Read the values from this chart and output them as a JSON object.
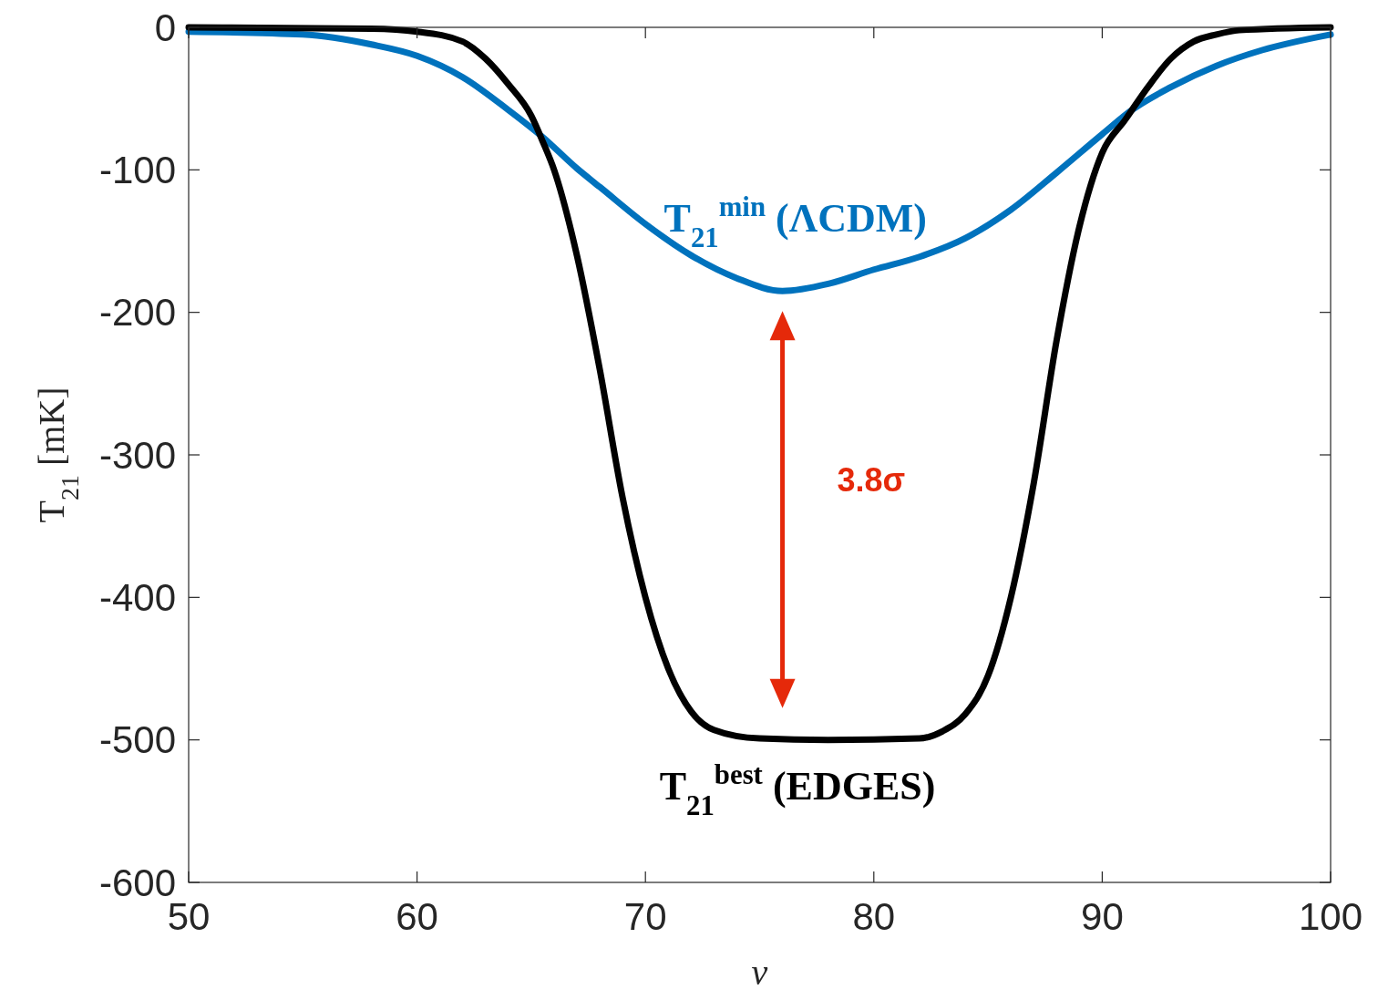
{
  "chart_data": {
    "type": "line",
    "xlabel": "ν",
    "ylabel": "T$_{21}$ [mK]",
    "xlim": [
      50,
      100
    ],
    "ylim": [
      -600,
      0
    ],
    "xticks": [
      50,
      60,
      70,
      80,
      90,
      100
    ],
    "yticks": [
      -600,
      -500,
      -400,
      -300,
      -200,
      -100,
      0
    ],
    "line_style": "solid",
    "marker": "none",
    "grid": false,
    "series": [
      {
        "name": "T$_{21}$$^{min}$ (ΛCDM)",
        "color": "#0072bd",
        "x": [
          50,
          55,
          58,
          60,
          62,
          64,
          65.5,
          67,
          68,
          70,
          72,
          74,
          76,
          78,
          80,
          82,
          84,
          86,
          88,
          90,
          91.3,
          93,
          95,
          97,
          100
        ],
        "values": [
          -3,
          -5,
          -12,
          -20,
          -35,
          -58,
          -77,
          -99,
          -112,
          -138,
          -160,
          -176,
          -185,
          -180,
          -170,
          -161,
          -148,
          -128,
          -102,
          -75,
          -58,
          -42,
          -27,
          -16,
          -5
        ]
      },
      {
        "name": "T$_{21}$$^{best}$ (EDGES)",
        "color": "#000000",
        "x": [
          50,
          58,
          60,
          62,
          63,
          64,
          65,
          65.5,
          66,
          67,
          68,
          69,
          70,
          71,
          72,
          73,
          75,
          78,
          82,
          83,
          84,
          85,
          86,
          87,
          88,
          89,
          90,
          91,
          91.3,
          92,
          93,
          94,
          95,
          96,
          100
        ],
        "values": [
          0,
          -1,
          -3,
          -10,
          -22,
          -40,
          -62,
          -80,
          -100,
          -160,
          -240,
          -330,
          -400,
          -450,
          -480,
          -493,
          -499,
          -500,
          -499,
          -494,
          -482,
          -455,
          -400,
          -320,
          -220,
          -140,
          -88,
          -65,
          -58,
          -42,
          -22,
          -10,
          -5,
          -2,
          0
        ]
      }
    ],
    "annotations": [
      "3.8σ"
    ]
  }
}
